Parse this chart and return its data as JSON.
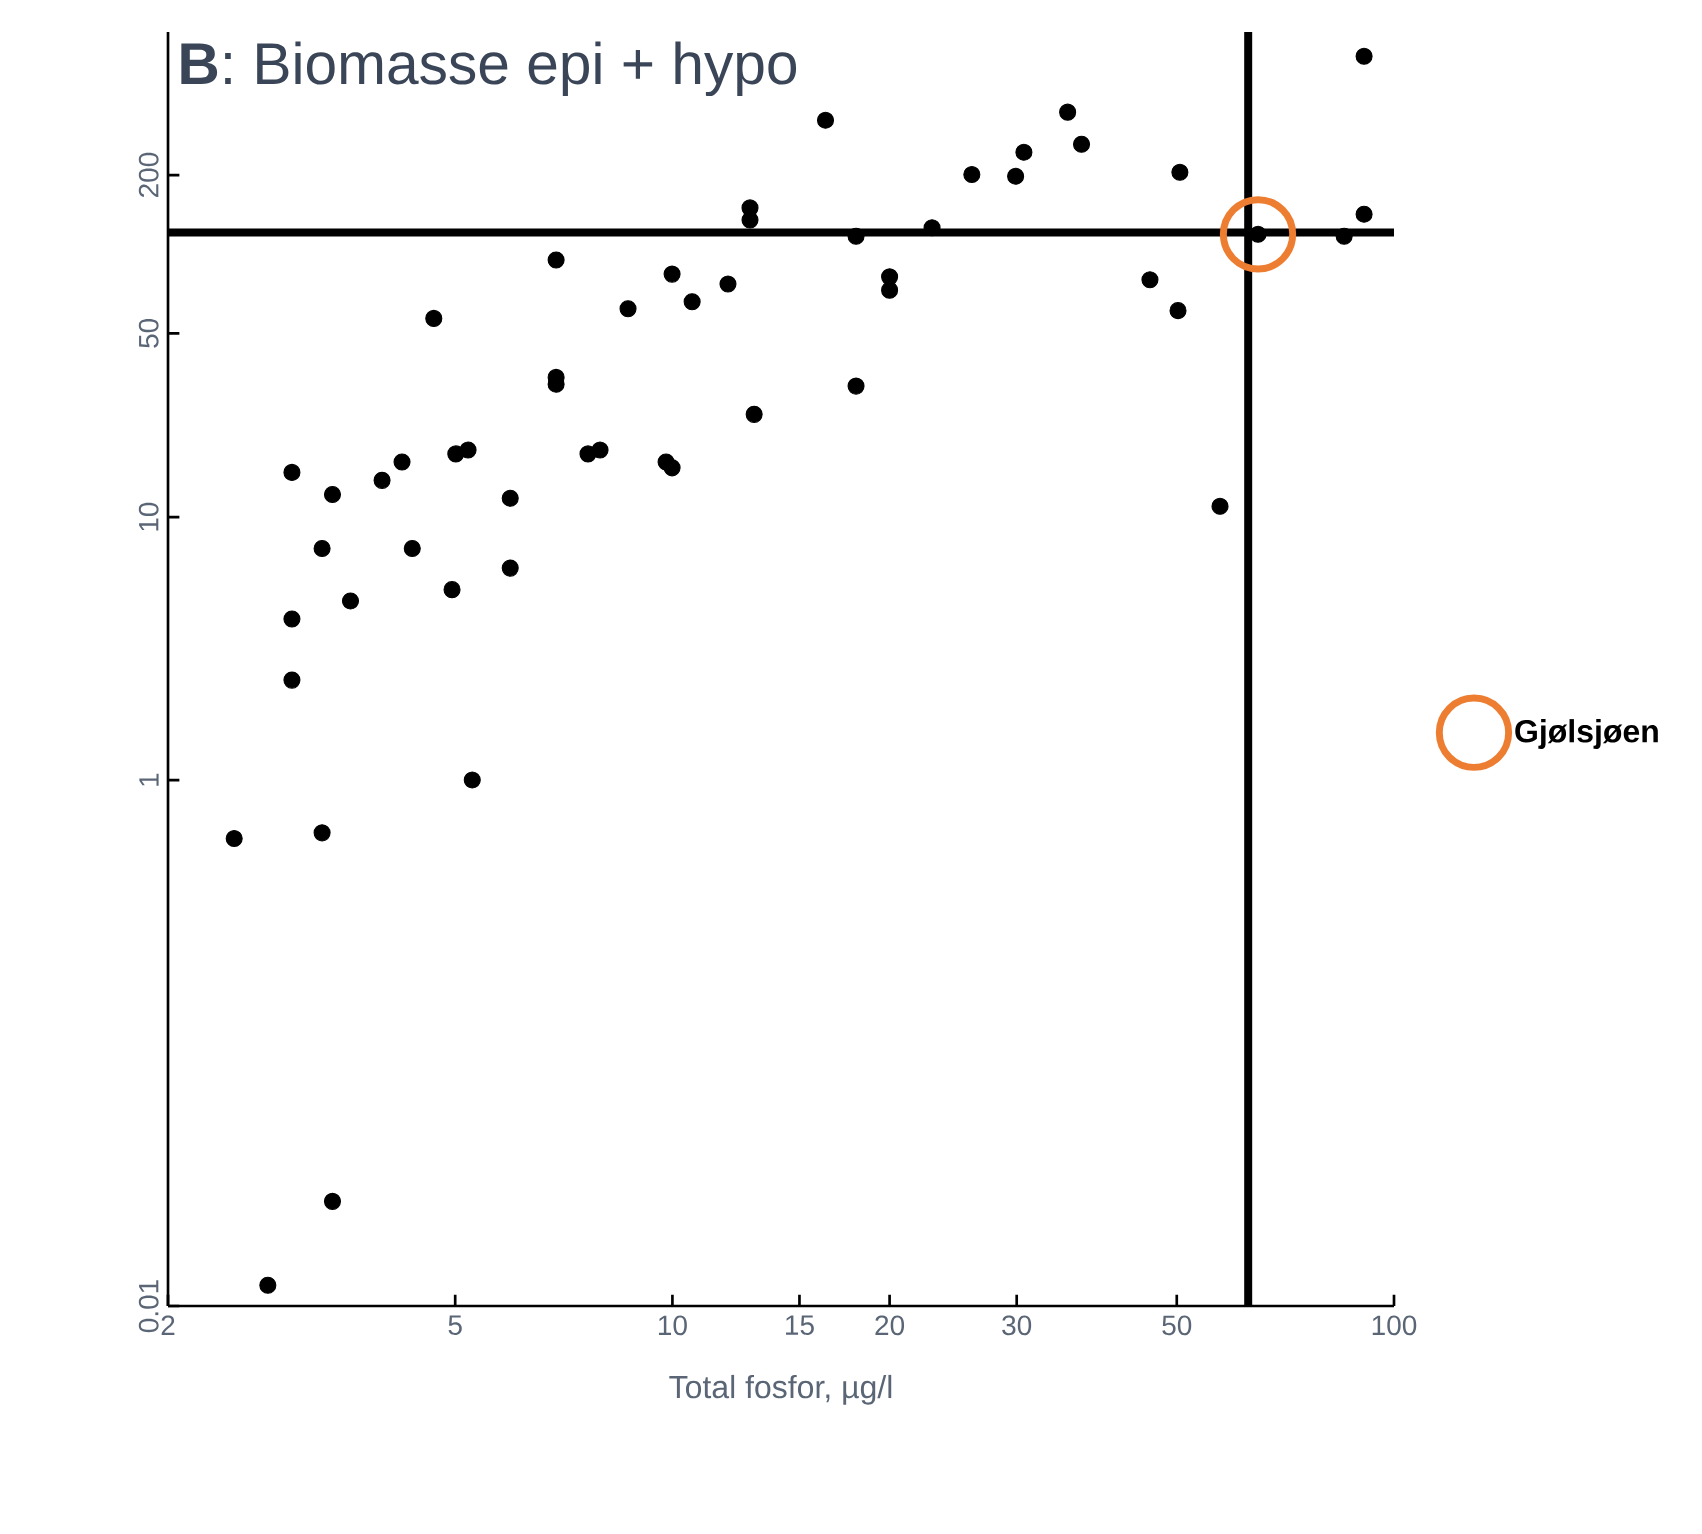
{
  "chart_data": {
    "type": "scatter",
    "title": "**B**: Biomasse epi + hypo",
    "xlabel": "Total fosfor, µg/l",
    "log": "xy",
    "xlim": [
      2,
      100
    ],
    "ylim": [
      0.01,
      700
    ],
    "xticks": [
      2,
      5,
      10,
      15,
      20,
      30,
      50,
      100
    ],
    "yticks": [
      0.01,
      1,
      10,
      50,
      200
    ],
    "marker": "circle",
    "legend": "right",
    "grid": false,
    "series": [
      {
        "color": "#000000",
        "x": [
          2.47,
          2.75,
          2.97,
          2.97,
          2.97,
          3.27,
          3.27,
          3.38,
          3.38,
          3.58,
          3.96,
          4.22,
          4.36,
          4.67,
          4.95,
          5.01,
          5.21,
          5.28,
          5.96,
          5.96,
          6.9,
          6.9,
          6.9,
          7.64,
          7.94,
          8.68,
          9.8,
          9.99,
          9.99,
          10.65,
          11.94,
          12.81,
          12.81,
          12.98,
          16.3,
          17.97,
          17.97,
          20.0,
          20.0,
          22.9,
          26.0,
          29.9,
          30.7,
          35.3,
          36.9,
          45.9,
          50.2,
          50.5,
          57.4,
          64.8,
          85.3,
          90.9,
          90.9
        ],
        "values": [
          0.6,
          0.012,
          14.8,
          4.1,
          2.4,
          7.6,
          0.63,
          12.2,
          0.025,
          4.8,
          13.8,
          16.2,
          7.6,
          57,
          5.3,
          17.4,
          18,
          1.0,
          11.8,
          6.4,
          32,
          34,
          95,
          17.4,
          18,
          62,
          16.2,
          15.4,
          84,
          66,
          77,
          150,
          135,
          24.6,
          323,
          117,
          31.5,
          82,
          73,
          126,
          201,
          198,
          244,
          347,
          262,
          80,
          61,
          205,
          11.0,
          119,
          117,
          142,
          566
        ]
      },
      {
        "name": "Gjølsjøen",
        "color": "#ed7d31",
        "x": [
          64.8
        ],
        "values": [
          119
        ]
      }
    ],
    "ref_lines": [
      {
        "axis": "x",
        "value": 62.8,
        "color": "#000000"
      },
      {
        "axis": "y",
        "value": 121,
        "color": "#000000"
      }
    ]
  }
}
